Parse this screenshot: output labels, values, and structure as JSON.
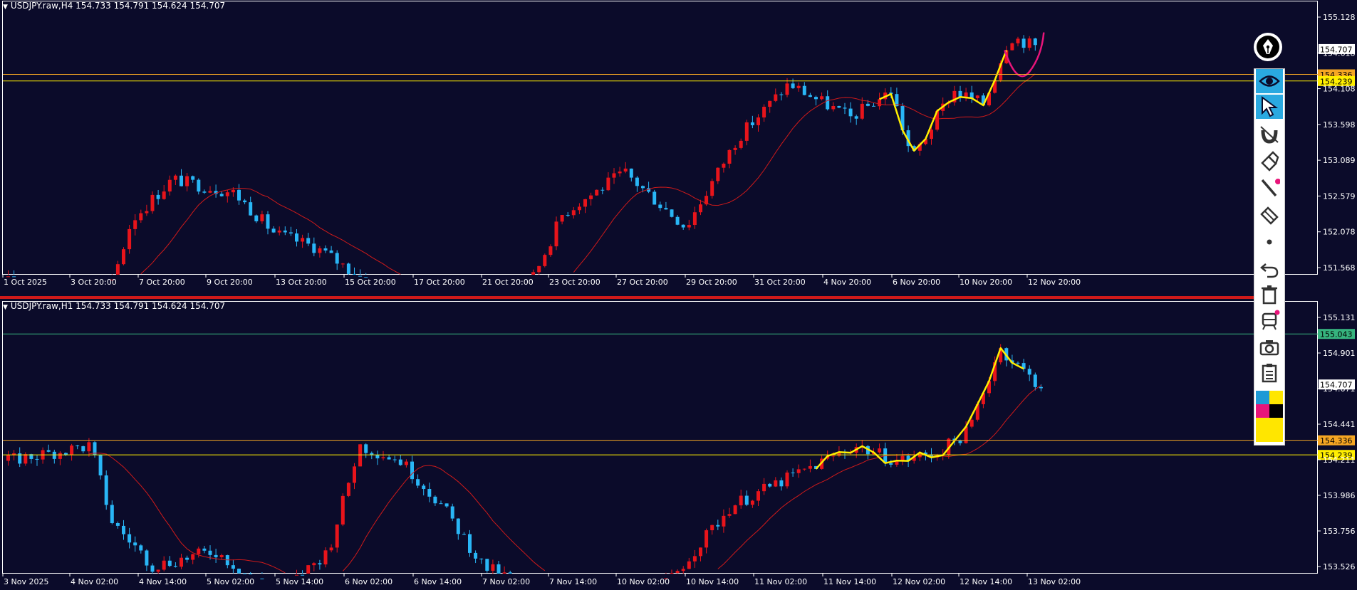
{
  "colors": {
    "background": "#0b0b2a",
    "bull": "#e8141b",
    "bear": "#29b6f6",
    "ma": "#d01a1a",
    "zigzag": "#ffef00",
    "projection": "#e8157a",
    "level_orange": "#f5a623",
    "level_yellow": "#ffee00",
    "level_green": "#36b37e",
    "separator": "#d01a1a"
  },
  "panels": [
    {
      "name": "h4",
      "header": "USDJPY.raw,H4  154.733 154.791 154.624 154.707",
      "price_ticks": [
        "155.128",
        "154.618",
        "154.108",
        "153.598",
        "153.089",
        "152.579",
        "152.078",
        "151.568"
      ],
      "time_ticks": [
        "1 Oct 2025",
        "3 Oct 20:00",
        "7 Oct 20:00",
        "9 Oct 20:00",
        "13 Oct 20:00",
        "15 Oct 20:00",
        "17 Oct 20:00",
        "21 Oct 20:00",
        "23 Oct 20:00",
        "27 Oct 20:00",
        "29 Oct 20:00",
        "31 Oct 20:00",
        "4 Nov 20:00",
        "6 Nov 20:00",
        "10 Nov 20:00",
        "12 Nov 20:00"
      ],
      "price_range": [
        151.4,
        155.28
      ],
      "current_price": "154.707",
      "levels": [
        {
          "label": "154.336",
          "value": 154.336,
          "kind": "orange"
        },
        {
          "label": "154.239",
          "value": 154.239,
          "kind": "yellow"
        }
      ]
    },
    {
      "name": "h1",
      "header": "USDJPY.raw,H1  154.733 154.791 154.624 154.707",
      "price_ticks": [
        "155.131",
        "154.901",
        "154.671",
        "154.441",
        "154.211",
        "153.986",
        "153.756",
        "153.526"
      ],
      "time_ticks": [
        "3 Nov 2025",
        "4 Nov 02:00",
        "4 Nov 14:00",
        "5 Nov 02:00",
        "5 Nov 14:00",
        "6 Nov 02:00",
        "6 Nov 14:00",
        "7 Nov 02:00",
        "7 Nov 14:00",
        "10 Nov 02:00",
        "10 Nov 14:00",
        "11 Nov 02:00",
        "11 Nov 14:00",
        "12 Nov 02:00",
        "12 Nov 14:00",
        "13 Nov 02:00"
      ],
      "price_range": [
        153.45,
        155.2
      ],
      "current_price": "154.707",
      "levels": [
        {
          "label": "155.043",
          "value": 155.043,
          "kind": "green"
        },
        {
          "label": "154.336",
          "value": 154.336,
          "kind": "orange"
        },
        {
          "label": "154.239",
          "value": 154.239,
          "kind": "yellow"
        }
      ]
    }
  ],
  "toolbar": {
    "items": [
      {
        "name": "eye-icon",
        "active": true
      },
      {
        "name": "cursor-arrow-icon",
        "active": true
      },
      {
        "name": "magnet-icon",
        "active": false
      },
      {
        "name": "brush-icon",
        "active": false
      },
      {
        "name": "line-pencil-icon",
        "active": false
      },
      {
        "name": "eraser-icon",
        "active": false
      },
      {
        "name": "dot-icon",
        "active": false
      },
      {
        "name": "undo-icon",
        "active": false
      },
      {
        "name": "trash-icon",
        "active": false
      },
      {
        "name": "train-icon",
        "active": false
      },
      {
        "name": "camera-icon",
        "active": false
      },
      {
        "name": "clipboard-icon",
        "active": false
      }
    ],
    "palette": [
      "#1e9ad6",
      "#ffe600",
      "#e8157a",
      "#000000",
      "#ffe600"
    ]
  }
}
